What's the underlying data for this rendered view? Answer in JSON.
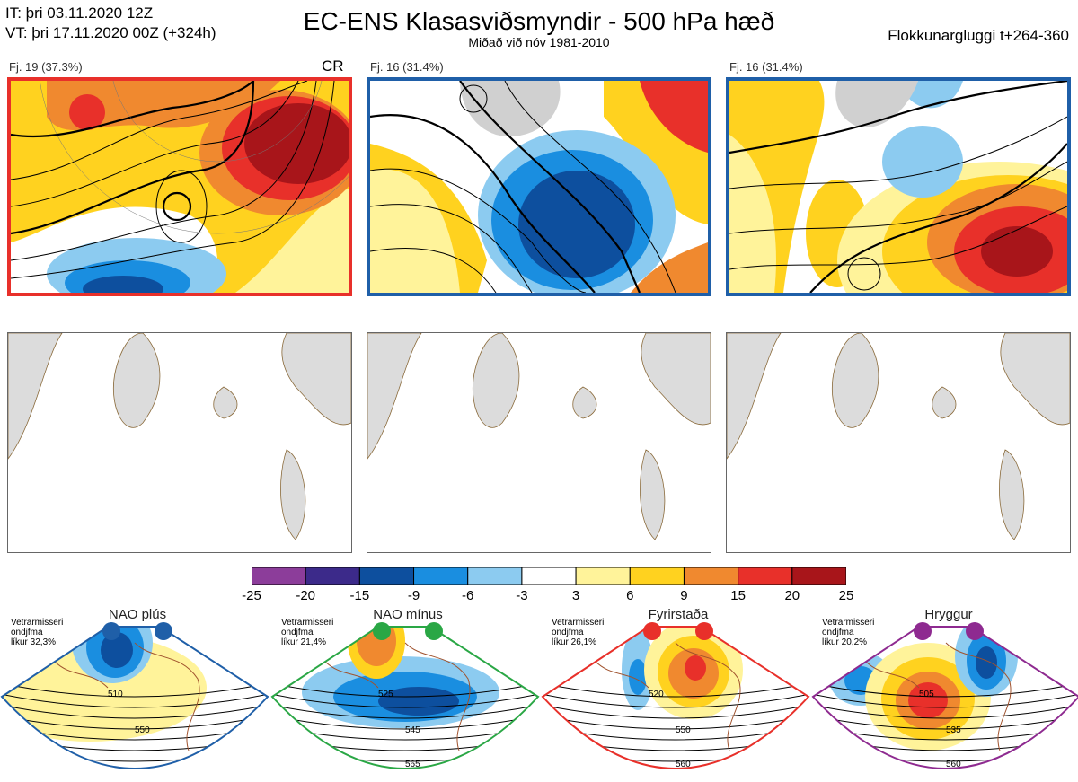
{
  "header": {
    "it_line": "IT: þri 03.11.2020 12Z",
    "vt_line": "VT: þri 17.11.2020 00Z  (+324h)",
    "title": "EC-ENS Klasasviðsmyndir - 500 hPa hæð",
    "subtitle": "Miðað við nóv 1981-2010",
    "window": "Flokkunargluggi t+264-360"
  },
  "clusters": [
    {
      "caption": "Fj. 19 (37.3%)",
      "code": "CR",
      "border_color": "#e8302a"
    },
    {
      "caption": "Fj. 16 (31.4%)",
      "code": "",
      "border_color": "#1f5fa8"
    },
    {
      "caption": "Fj. 16 (31.4%)",
      "code": "",
      "border_color": "#1f5fa8"
    }
  ],
  "colorbar": {
    "ticks": [
      "-25",
      "-20",
      "-15",
      "-9",
      "-6",
      "-3",
      "3",
      "6",
      "9",
      "15",
      "20",
      "25"
    ],
    "colors": [
      "#8c3d9a",
      "#3c2a8a",
      "#0d4f9e",
      "#1a8ee0",
      "#8ccbf0",
      "#ffffff",
      "#fff39a",
      "#ffd21f",
      "#f0892f",
      "#e8302a",
      "#a8151a"
    ]
  },
  "regimes": [
    {
      "name": "NAO plús",
      "note": [
        "Vetrarmisseri",
        "ondjfma",
        "líkur 32,3%"
      ],
      "color": "#1f5fa8",
      "labels": [
        "510",
        "550"
      ]
    },
    {
      "name": "NAO mínus",
      "note": [
        "Vetrarmisseri",
        "ondjfma",
        "líkur 21,4%"
      ],
      "color": "#2aa745",
      "labels": [
        "525",
        "545",
        "565"
      ]
    },
    {
      "name": "Fyrirstaða",
      "note": [
        "Vetrarmisseri",
        "ondjfma",
        "líkur 26,1%"
      ],
      "color": "#e8302a",
      "labels": [
        "520",
        "550",
        "560"
      ]
    },
    {
      "name": "Hryggur",
      "note": [
        "Vetrarmisseri",
        "ondjfma",
        "líkur 20,2%"
      ],
      "color": "#8e2a90",
      "labels": [
        "505",
        "535",
        "560"
      ]
    }
  ]
}
